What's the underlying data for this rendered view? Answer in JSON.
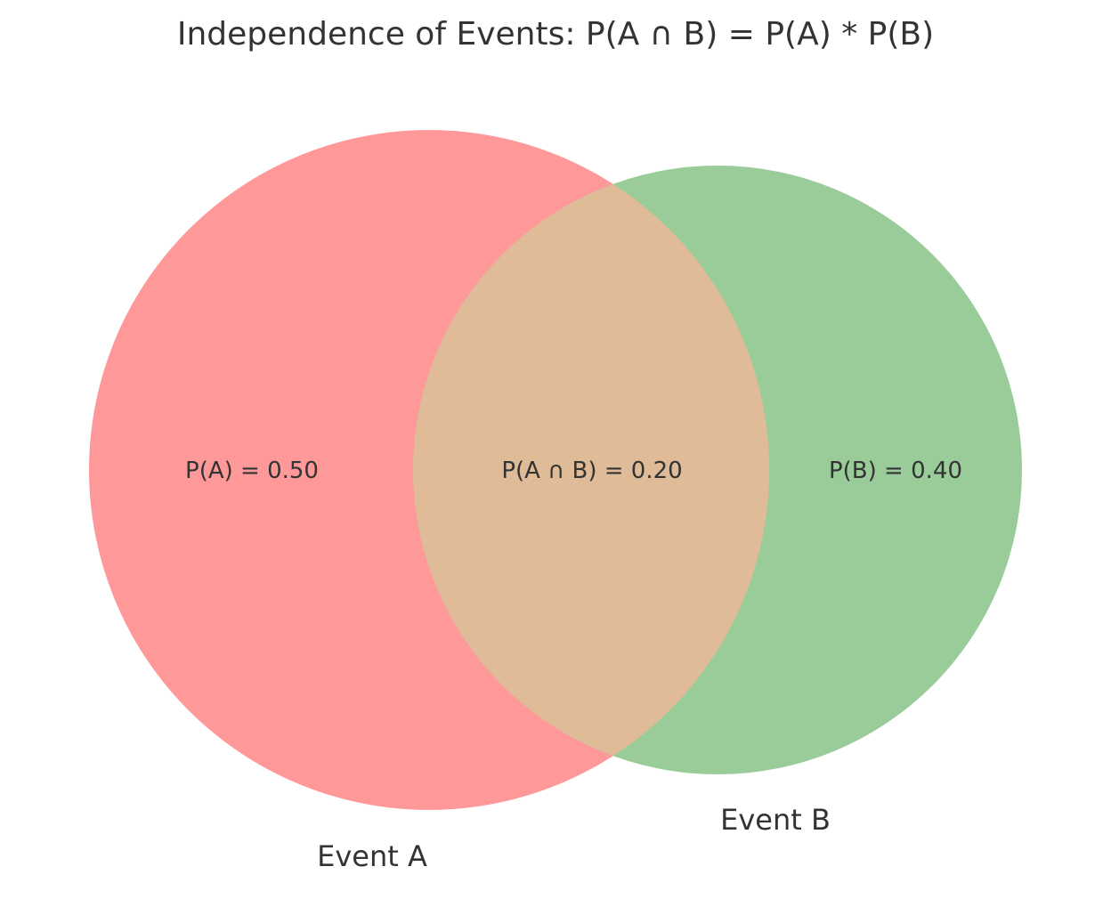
{
  "diagram": {
    "title": "Independence of Events: P(A ∩ B) = P(A) * P(B)",
    "sets": [
      {
        "id": "A",
        "label": "Event A",
        "region_label": "P(A) = 0.50",
        "probability": 0.5,
        "color": "#ff9999"
      },
      {
        "id": "B",
        "label": "Event B",
        "region_label": "P(B) = 0.40",
        "probability": 0.4,
        "color": "#99cc99"
      }
    ],
    "intersection": {
      "label": "P(A ∩ B) = 0.20",
      "probability": 0.2,
      "color": "#dfbb97"
    }
  }
}
